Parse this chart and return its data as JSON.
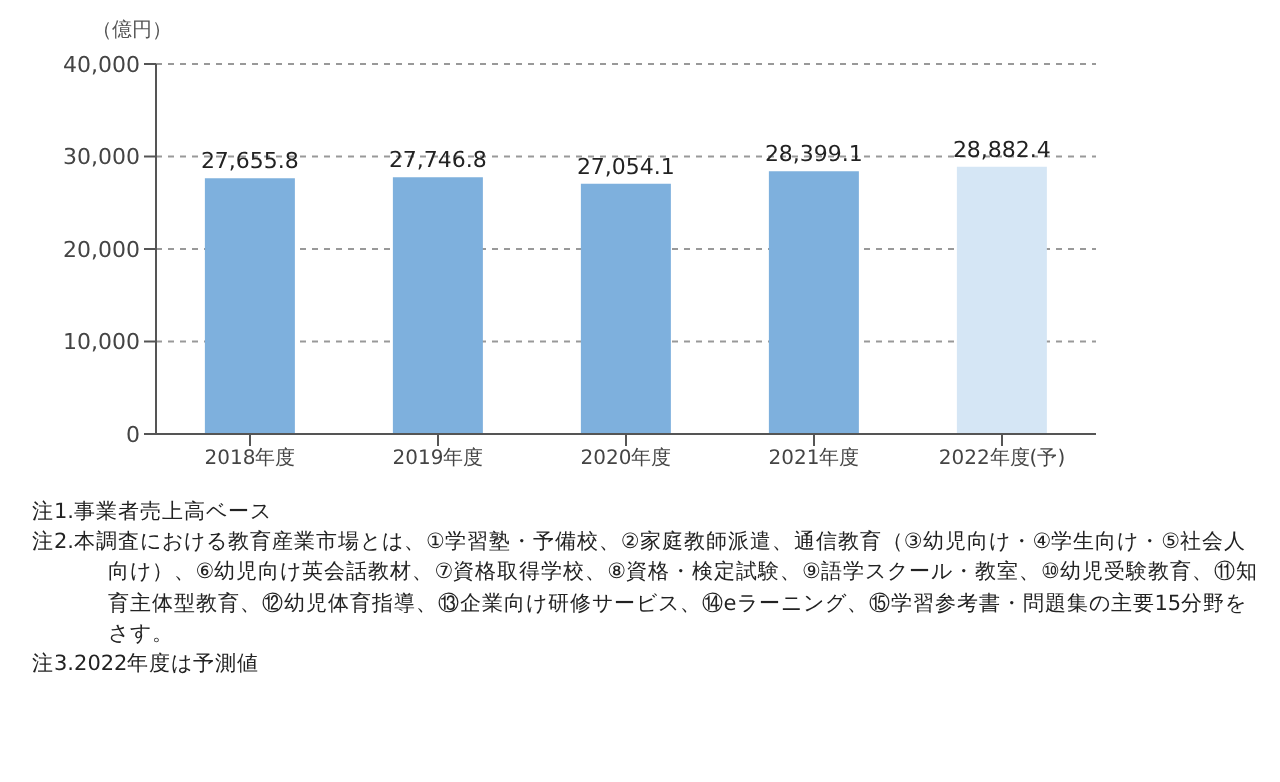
{
  "chart_data": {
    "type": "bar",
    "ylabel": "（億円）",
    "categories": [
      "2018年度",
      "2019年度",
      "2020年度",
      "2021年度",
      "2022年度(予)"
    ],
    "values": [
      27655.8,
      27746.8,
      27054.1,
      28399.1,
      28882.4
    ],
    "value_labels": [
      "27,655.8",
      "27,746.8",
      "27,054.1",
      "28,399.1",
      "28,882.4"
    ],
    "colors": [
      "#7eb0dd",
      "#7eb0dd",
      "#7eb0dd",
      "#7eb0dd",
      "#d5e6f5"
    ],
    "ylim": [
      0,
      40000
    ],
    "yticks": [
      {
        "value": 0,
        "label": "0"
      },
      {
        "value": 10000,
        "label": "10,000"
      },
      {
        "value": 20000,
        "label": "20,000"
      },
      {
        "value": 30000,
        "label": "30,000"
      },
      {
        "value": 40000,
        "label": "40,000"
      }
    ],
    "grid": "y",
    "annotations": [
      "注1.事業者売上高ベース",
      "注2.本調査における教育産業市場とは、①学習塾・予備校、②家庭教師派遣、通信教育（③幼児向け・④学生向け・⑤社会人向け）、⑥幼児向け英会話教材、⑦資格取得学校、⑧資格・検定試験、⑨語学スクール・教室、⑩幼児受験教育、⑪知育主体型教育、⑫幼児体育指導、⑬企業向け研修サービス、⑭eラーニング、⑮学習参考書・問題集の主要15分野をさす。",
      "注3.2022年度は予測値"
    ]
  }
}
